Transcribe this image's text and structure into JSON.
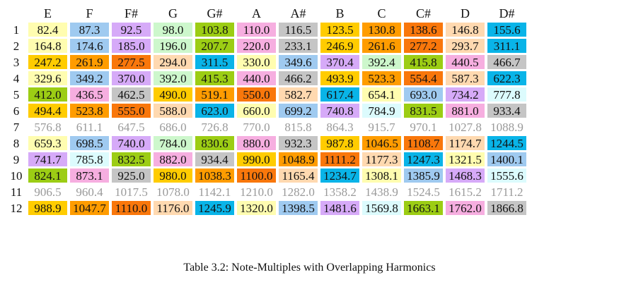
{
  "colors": {
    "yellow": "#fffdb0",
    "blue": "#9fcaf0",
    "purple": "#d6aaf8",
    "mint": "#cdf7cc",
    "green": "#9ccd14",
    "pink": "#f6aee0",
    "gray": "#c5c5c5",
    "gold": "#ffcc00",
    "orange": "#ff9c00",
    "darkorange": "#f9770b",
    "peach": "#ffd9b0",
    "cyan": "#09b4e8",
    "lightcyan": "#dcfbfd",
    "white": "#ffffff"
  },
  "table": {
    "headers": [
      "E",
      "F",
      "F#",
      "G",
      "G#",
      "A",
      "A#",
      "B",
      "C",
      "C#",
      "D",
      "D#"
    ],
    "rows": [
      {
        "n": "1",
        "dim": false,
        "cells": [
          [
            "82.4",
            "yellow"
          ],
          [
            "87.3",
            "blue"
          ],
          [
            "92.5",
            "purple"
          ],
          [
            "98.0",
            "mint"
          ],
          [
            "103.8",
            "green"
          ],
          [
            "110.0",
            "pink"
          ],
          [
            "116.5",
            "gray"
          ],
          [
            "123.5",
            "gold"
          ],
          [
            "130.8",
            "orange"
          ],
          [
            "138.6",
            "darkorange"
          ],
          [
            "146.8",
            "peach"
          ],
          [
            "155.6",
            "cyan"
          ]
        ]
      },
      {
        "n": "2",
        "dim": false,
        "cells": [
          [
            "164.8",
            "yellow"
          ],
          [
            "174.6",
            "blue"
          ],
          [
            "185.0",
            "purple"
          ],
          [
            "196.0",
            "mint"
          ],
          [
            "207.7",
            "green"
          ],
          [
            "220.0",
            "pink"
          ],
          [
            "233.1",
            "gray"
          ],
          [
            "246.9",
            "gold"
          ],
          [
            "261.6",
            "orange"
          ],
          [
            "277.2",
            "darkorange"
          ],
          [
            "293.7",
            "peach"
          ],
          [
            "311.1",
            "cyan"
          ]
        ]
      },
      {
        "n": "3",
        "dim": false,
        "cells": [
          [
            "247.2",
            "gold"
          ],
          [
            "261.9",
            "orange"
          ],
          [
            "277.5",
            "darkorange"
          ],
          [
            "294.0",
            "peach"
          ],
          [
            "311.5",
            "cyan"
          ],
          [
            "330.0",
            "yellow"
          ],
          [
            "349.6",
            "blue"
          ],
          [
            "370.4",
            "purple"
          ],
          [
            "392.4",
            "mint"
          ],
          [
            "415.8",
            "green"
          ],
          [
            "440.5",
            "pink"
          ],
          [
            "466.7",
            "gray"
          ]
        ]
      },
      {
        "n": "4",
        "dim": false,
        "cells": [
          [
            "329.6",
            "yellow"
          ],
          [
            "349.2",
            "blue"
          ],
          [
            "370.0",
            "purple"
          ],
          [
            "392.0",
            "mint"
          ],
          [
            "415.3",
            "green"
          ],
          [
            "440.0",
            "pink"
          ],
          [
            "466.2",
            "gray"
          ],
          [
            "493.9",
            "gold"
          ],
          [
            "523.3",
            "orange"
          ],
          [
            "554.4",
            "darkorange"
          ],
          [
            "587.3",
            "peach"
          ],
          [
            "622.3",
            "cyan"
          ]
        ]
      },
      {
        "n": "5",
        "dim": false,
        "cells": [
          [
            "412.0",
            "green"
          ],
          [
            "436.5",
            "pink"
          ],
          [
            "462.5",
            "gray"
          ],
          [
            "490.0",
            "gold"
          ],
          [
            "519.1",
            "orange"
          ],
          [
            "550.0",
            "darkorange"
          ],
          [
            "582.7",
            "peach"
          ],
          [
            "617.4",
            "cyan"
          ],
          [
            "654.1",
            "yellow"
          ],
          [
            "693.0",
            "blue"
          ],
          [
            "734.2",
            "purple"
          ],
          [
            "777.8",
            "lightcyan"
          ]
        ]
      },
      {
        "n": "6",
        "dim": false,
        "cells": [
          [
            "494.4",
            "gold"
          ],
          [
            "523.8",
            "orange"
          ],
          [
            "555.0",
            "darkorange"
          ],
          [
            "588.0",
            "peach"
          ],
          [
            "623.0",
            "cyan"
          ],
          [
            "660.0",
            "yellow"
          ],
          [
            "699.2",
            "blue"
          ],
          [
            "740.8",
            "purple"
          ],
          [
            "784.9",
            "lightcyan"
          ],
          [
            "831.5",
            "green"
          ],
          [
            "881.0",
            "pink"
          ],
          [
            "933.4",
            "gray"
          ]
        ]
      },
      {
        "n": "7",
        "dim": true,
        "cells": [
          [
            "576.8",
            "white"
          ],
          [
            "611.1",
            "white"
          ],
          [
            "647.5",
            "white"
          ],
          [
            "686.0",
            "white"
          ],
          [
            "726.8",
            "white"
          ],
          [
            "770.0",
            "white"
          ],
          [
            "815.8",
            "white"
          ],
          [
            "864.3",
            "white"
          ],
          [
            "915.7",
            "white"
          ],
          [
            "970.1",
            "white"
          ],
          [
            "1027.8",
            "white"
          ],
          [
            "1088.9",
            "white"
          ]
        ]
      },
      {
        "n": "8",
        "dim": false,
        "cells": [
          [
            "659.3",
            "yellow"
          ],
          [
            "698.5",
            "blue"
          ],
          [
            "740.0",
            "purple"
          ],
          [
            "784.0",
            "mint"
          ],
          [
            "830.6",
            "green"
          ],
          [
            "880.0",
            "pink"
          ],
          [
            "932.3",
            "gray"
          ],
          [
            "987.8",
            "gold"
          ],
          [
            "1046.5",
            "orange"
          ],
          [
            "1108.7",
            "darkorange"
          ],
          [
            "1174.7",
            "peach"
          ],
          [
            "1244.5",
            "cyan"
          ]
        ]
      },
      {
        "n": "9",
        "dim": false,
        "cells": [
          [
            "741.7",
            "purple"
          ],
          [
            "785.8",
            "lightcyan"
          ],
          [
            "832.5",
            "green"
          ],
          [
            "882.0",
            "pink"
          ],
          [
            "934.4",
            "gray"
          ],
          [
            "990.0",
            "gold"
          ],
          [
            "1048.9",
            "orange"
          ],
          [
            "1111.2",
            "darkorange"
          ],
          [
            "1177.3",
            "peach"
          ],
          [
            "1247.3",
            "cyan"
          ],
          [
            "1321.5",
            "yellow"
          ],
          [
            "1400.1",
            "blue"
          ]
        ]
      },
      {
        "n": "10",
        "dim": false,
        "cells": [
          [
            "824.1",
            "green"
          ],
          [
            "873.1",
            "pink"
          ],
          [
            "925.0",
            "gray"
          ],
          [
            "980.0",
            "gold"
          ],
          [
            "1038.3",
            "orange"
          ],
          [
            "1100.0",
            "darkorange"
          ],
          [
            "1165.4",
            "peach"
          ],
          [
            "1234.7",
            "cyan"
          ],
          [
            "1308.1",
            "yellow"
          ],
          [
            "1385.9",
            "blue"
          ],
          [
            "1468.3",
            "purple"
          ],
          [
            "1555.6",
            "lightcyan"
          ]
        ]
      },
      {
        "n": "11",
        "dim": true,
        "cells": [
          [
            "906.5",
            "white"
          ],
          [
            "960.4",
            "white"
          ],
          [
            "1017.5",
            "white"
          ],
          [
            "1078.0",
            "white"
          ],
          [
            "1142.1",
            "white"
          ],
          [
            "1210.0",
            "white"
          ],
          [
            "1282.0",
            "white"
          ],
          [
            "1358.2",
            "white"
          ],
          [
            "1438.9",
            "white"
          ],
          [
            "1524.5",
            "white"
          ],
          [
            "1615.2",
            "white"
          ],
          [
            "1711.2",
            "white"
          ]
        ]
      },
      {
        "n": "12",
        "dim": false,
        "cells": [
          [
            "988.9",
            "gold"
          ],
          [
            "1047.7",
            "orange"
          ],
          [
            "1110.0",
            "darkorange"
          ],
          [
            "1176.0",
            "peach"
          ],
          [
            "1245.9",
            "cyan"
          ],
          [
            "1320.0",
            "yellow"
          ],
          [
            "1398.5",
            "blue"
          ],
          [
            "1481.6",
            "purple"
          ],
          [
            "1569.8",
            "lightcyan"
          ],
          [
            "1663.1",
            "green"
          ],
          [
            "1762.0",
            "pink"
          ],
          [
            "1866.8",
            "gray"
          ]
        ]
      }
    ]
  },
  "caption": "Table 3.2: Note-Multiples with Overlapping Harmonics"
}
